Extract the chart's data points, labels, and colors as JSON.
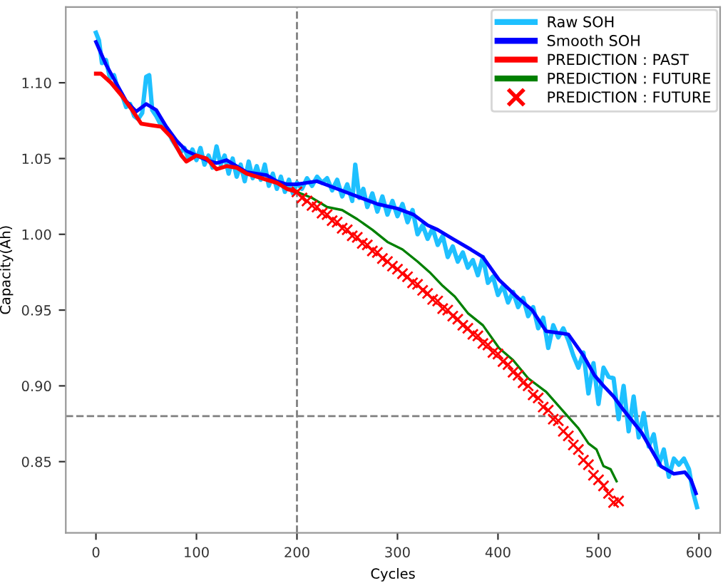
{
  "chart_data": {
    "type": "line",
    "xlabel": "Cycles",
    "ylabel": "Capacity(Ah)",
    "xlim": [
      -30,
      621
    ],
    "ylim": [
      0.803,
      1.15
    ],
    "xticks": [
      0,
      100,
      200,
      300,
      400,
      500,
      600
    ],
    "yticks": [
      0.85,
      {
        "value": 0.9,
        "label": "0.90"
      },
      0.95,
      {
        "value": 1.0,
        "label": "1.00"
      },
      1.05,
      {
        "value": 1.1,
        "label": "1.10"
      }
    ],
    "grid": false,
    "legend": "top right",
    "ref_lines": [
      {
        "axis": "x",
        "value": 200,
        "color": "#808080",
        "line_style": "dashed"
      },
      {
        "axis": "y",
        "value": 0.88,
        "color": "#808080",
        "line_style": "dashed"
      }
    ],
    "series": [
      {
        "name": "Raw SOH",
        "color": "#1ec0ff",
        "x": [
          0,
          3,
          6,
          10,
          14,
          18,
          22,
          26,
          30,
          34,
          38,
          42,
          46,
          50,
          53,
          56,
          60,
          64,
          68,
          72,
          76,
          80,
          84,
          88,
          92,
          96,
          100,
          104,
          108,
          112,
          116,
          120,
          124,
          128,
          132,
          136,
          140,
          144,
          148,
          152,
          156,
          160,
          164,
          168,
          172,
          176,
          180,
          184,
          188,
          192,
          196,
          200,
          205,
          210,
          215,
          220,
          225,
          230,
          235,
          240,
          245,
          250,
          255,
          258,
          262,
          266,
          270,
          275,
          280,
          285,
          290,
          295,
          300,
          305,
          310,
          315,
          320,
          325,
          330,
          335,
          340,
          345,
          350,
          355,
          360,
          365,
          370,
          375,
          380,
          385,
          390,
          395,
          400,
          405,
          410,
          415,
          420,
          425,
          430,
          435,
          440,
          445,
          450,
          455,
          460,
          465,
          470,
          475,
          480,
          485,
          490,
          495,
          500,
          505,
          510,
          515,
          520,
          525,
          530,
          535,
          540,
          545,
          550,
          555,
          560,
          565,
          570,
          575,
          580,
          585,
          590,
          594,
          598
        ],
        "values": [
          1.133,
          1.128,
          1.113,
          1.115,
          1.103,
          1.105,
          1.095,
          1.092,
          1.084,
          1.086,
          1.078,
          1.076,
          1.08,
          1.104,
          1.105,
          1.082,
          1.078,
          1.073,
          1.07,
          1.068,
          1.062,
          1.058,
          1.054,
          1.057,
          1.05,
          1.056,
          1.049,
          1.057,
          1.046,
          1.052,
          1.044,
          1.058,
          1.046,
          1.052,
          1.04,
          1.05,
          1.038,
          1.046,
          1.035,
          1.048,
          1.037,
          1.045,
          1.036,
          1.046,
          1.032,
          1.04,
          1.03,
          1.038,
          1.028,
          1.036,
          1.027,
          1.034,
          1.03,
          1.037,
          1.032,
          1.038,
          1.034,
          1.037,
          1.029,
          1.036,
          1.025,
          1.033,
          1.022,
          1.046,
          1.024,
          1.03,
          1.018,
          1.027,
          1.015,
          1.025,
          1.013,
          1.022,
          1.012,
          1.02,
          1.008,
          1.016,
          1.0,
          1.006,
          0.997,
          1.004,
          0.993,
          0.999,
          0.985,
          0.992,
          0.982,
          0.988,
          0.978,
          0.983,
          0.973,
          0.985,
          0.968,
          0.972,
          0.96,
          0.966,
          0.955,
          0.962,
          0.952,
          0.958,
          0.946,
          0.952,
          0.938,
          0.945,
          0.925,
          0.94,
          0.932,
          0.938,
          0.93,
          0.92,
          0.912,
          0.922,
          0.895,
          0.915,
          0.888,
          0.912,
          0.906,
          0.905,
          0.878,
          0.9,
          0.87,
          0.893,
          0.866,
          0.882,
          0.86,
          0.868,
          0.848,
          0.858,
          0.84,
          0.852,
          0.848,
          0.852,
          0.845,
          0.83,
          0.82
        ]
      },
      {
        "name": "Smooth SOH",
        "color": "#0000ff",
        "x": [
          0,
          10,
          20,
          30,
          40,
          50,
          60,
          70,
          80,
          90,
          100,
          110,
          120,
          130,
          140,
          150,
          160,
          170,
          180,
          190,
          200,
          220,
          240,
          260,
          280,
          300,
          316,
          330,
          340,
          355,
          373,
          385,
          401,
          420,
          434,
          448,
          460,
          470,
          485,
          496,
          505,
          515,
          525,
          543,
          562,
          575,
          586,
          592,
          597
        ],
        "values": [
          1.127,
          1.112,
          1.1,
          1.088,
          1.081,
          1.086,
          1.082,
          1.071,
          1.062,
          1.055,
          1.052,
          1.049,
          1.047,
          1.049,
          1.045,
          1.041,
          1.04,
          1.039,
          1.035,
          1.033,
          1.033,
          1.035,
          1.03,
          1.025,
          1.02,
          1.017,
          1.013,
          1.006,
          1.003,
          0.997,
          0.99,
          0.985,
          0.97,
          0.958,
          0.95,
          0.936,
          0.935,
          0.934,
          0.92,
          0.907,
          0.9,
          0.893,
          0.884,
          0.869,
          0.847,
          0.842,
          0.843,
          0.838,
          0.829
        ]
      },
      {
        "name": "PREDICTION : PAST",
        "color": "#ff0000",
        "x": [
          0,
          5,
          15,
          25,
          35,
          45,
          55,
          65,
          75,
          85,
          90,
          100,
          110,
          120,
          130,
          140,
          150,
          160,
          170,
          180,
          190,
          200
        ],
        "values": [
          1.106,
          1.106,
          1.1,
          1.092,
          1.083,
          1.073,
          1.072,
          1.071,
          1.064,
          1.052,
          1.048,
          1.052,
          1.05,
          1.043,
          1.045,
          1.044,
          1.04,
          1.038,
          1.036,
          1.034,
          1.03,
          1.028
        ]
      },
      {
        "name": "PREDICTION : FUTURE",
        "color": "#008000",
        "x": [
          200,
          215,
          230,
          245,
          260,
          275,
          290,
          305,
          320,
          332,
          345,
          357,
          370,
          385,
          401,
          415,
          430,
          448,
          468,
          480,
          490,
          498,
          505,
          512,
          518
        ],
        "values": [
          1.028,
          1.024,
          1.018,
          1.016,
          1.01,
          1.003,
          0.995,
          0.99,
          0.982,
          0.975,
          0.966,
          0.959,
          0.948,
          0.94,
          0.925,
          0.917,
          0.905,
          0.896,
          0.881,
          0.872,
          0.862,
          0.858,
          0.847,
          0.845,
          0.837
        ]
      },
      {
        "name": "PREDICTION : FUTURE",
        "color": "#ff0000",
        "type": "scatter",
        "marker": "cross",
        "x": [
          200,
          205,
          210,
          215,
          220,
          225,
          230,
          235,
          240,
          245,
          250,
          255,
          260,
          265,
          270,
          275,
          280,
          285,
          290,
          295,
          300,
          305,
          310,
          315,
          320,
          325,
          330,
          335,
          340,
          345,
          350,
          355,
          360,
          365,
          370,
          375,
          380,
          385,
          390,
          395,
          400,
          405,
          410,
          415,
          420,
          425,
          430,
          435,
          440,
          445,
          450,
          455,
          460,
          465,
          470,
          475,
          480,
          485,
          490,
          495,
          500,
          505,
          510,
          515,
          520
        ],
        "values": [
          1.028,
          1.024,
          1.022,
          1.019,
          1.018,
          1.014,
          1.013,
          1.009,
          1.008,
          1.004,
          1.003,
          0.999,
          0.998,
          0.994,
          0.993,
          0.989,
          0.988,
          0.984,
          0.982,
          0.979,
          0.977,
          0.974,
          0.972,
          0.968,
          0.967,
          0.963,
          0.961,
          0.957,
          0.956,
          0.951,
          0.95,
          0.946,
          0.944,
          0.94,
          0.938,
          0.934,
          0.933,
          0.928,
          0.927,
          0.922,
          0.921,
          0.916,
          0.914,
          0.909,
          0.907,
          0.902,
          0.9,
          0.894,
          0.892,
          0.886,
          0.884,
          0.878,
          0.877,
          0.87,
          0.867,
          0.861,
          0.858,
          0.851,
          0.848,
          0.841,
          0.838,
          0.834,
          0.829,
          0.823,
          0.824
        ]
      }
    ]
  }
}
